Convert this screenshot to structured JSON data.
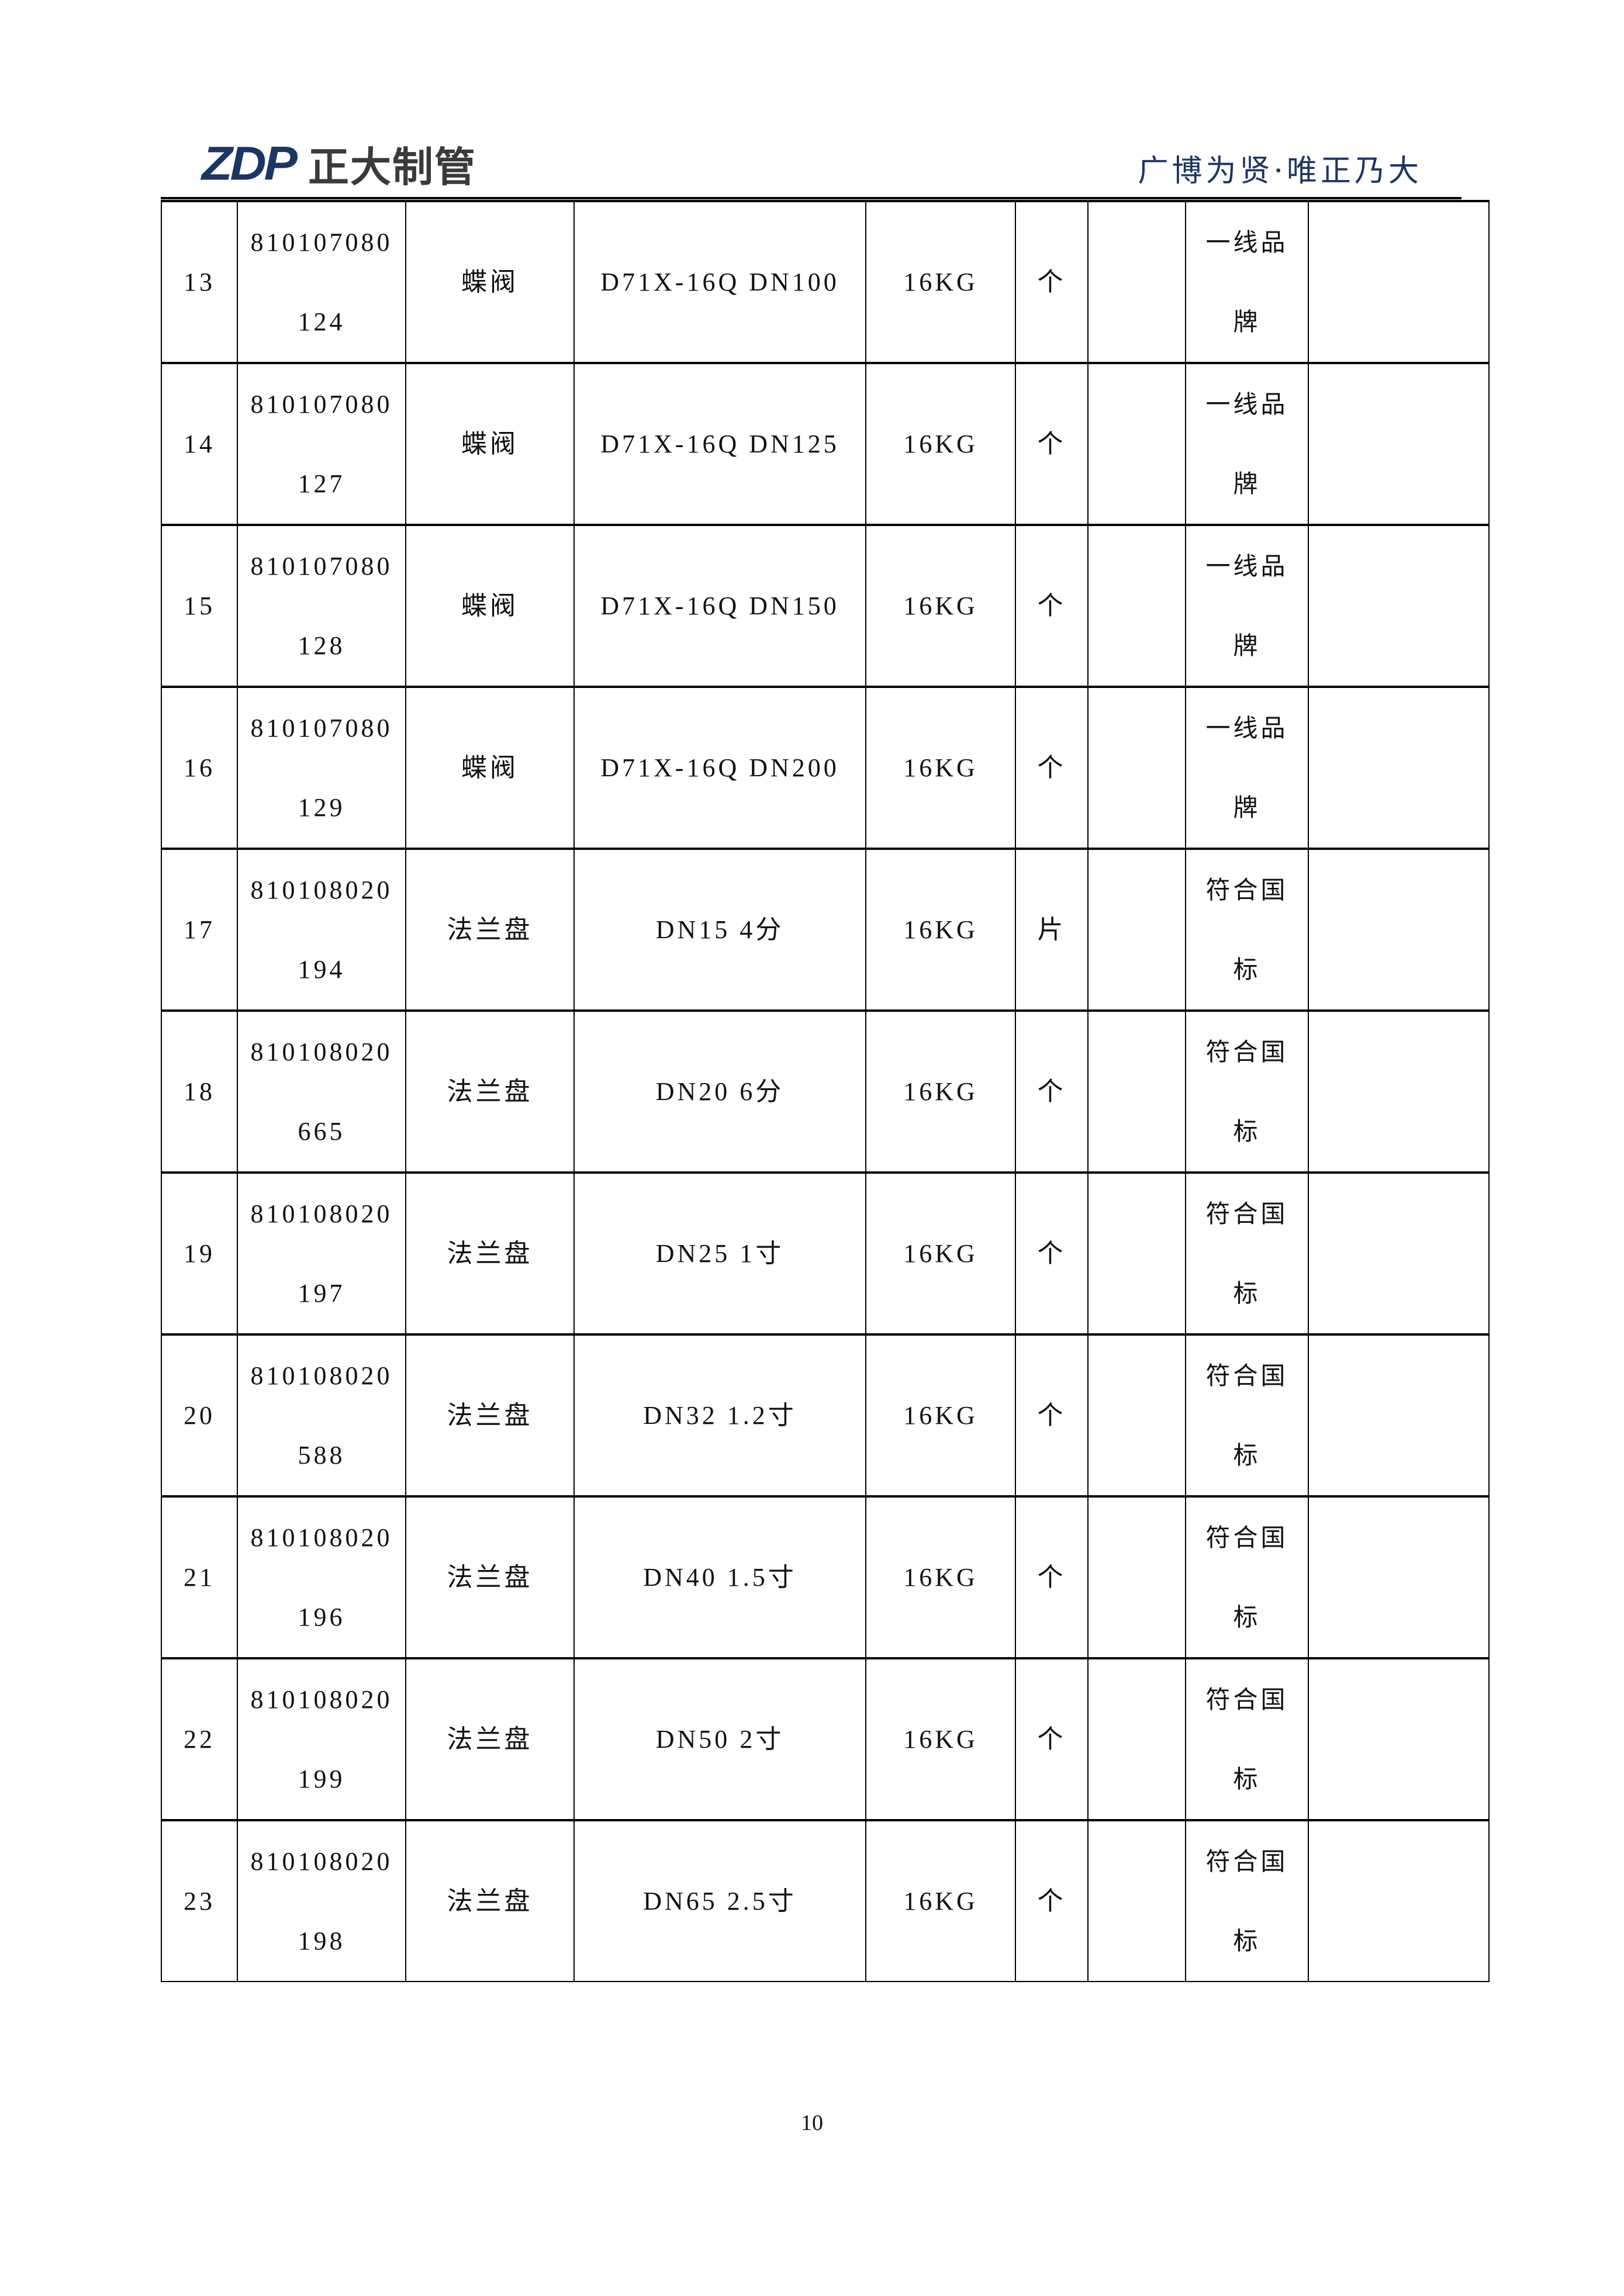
{
  "header": {
    "logo_mark": "ZDP",
    "logo_text": "正大制管",
    "slogan": "广博为贤·唯正乃大"
  },
  "rows": [
    {
      "no": "13",
      "code_a": "810107080",
      "code_b": "124",
      "name": "蝶阀",
      "spec": "D71X-16Q DN100",
      "pressure": "16KG",
      "unit": "个",
      "qty": "",
      "std_a": "一线品",
      "std_b": "牌",
      "note": ""
    },
    {
      "no": "14",
      "code_a": "810107080",
      "code_b": "127",
      "name": "蝶阀",
      "spec": "D71X-16Q DN125",
      "pressure": "16KG",
      "unit": "个",
      "qty": "",
      "std_a": "一线品",
      "std_b": "牌",
      "note": ""
    },
    {
      "no": "15",
      "code_a": "810107080",
      "code_b": "128",
      "name": "蝶阀",
      "spec": "D71X-16Q DN150",
      "pressure": "16KG",
      "unit": "个",
      "qty": "",
      "std_a": "一线品",
      "std_b": "牌",
      "note": ""
    },
    {
      "no": "16",
      "code_a": "810107080",
      "code_b": "129",
      "name": "蝶阀",
      "spec": "D71X-16Q DN200",
      "pressure": "16KG",
      "unit": "个",
      "qty": "",
      "std_a": "一线品",
      "std_b": "牌",
      "note": ""
    },
    {
      "no": "17",
      "code_a": "810108020",
      "code_b": "194",
      "name": "法兰盘",
      "spec": "DN15 4分",
      "pressure": "16KG",
      "unit": "片",
      "qty": "",
      "std_a": "符合国",
      "std_b": "标",
      "note": ""
    },
    {
      "no": "18",
      "code_a": "810108020",
      "code_b": "665",
      "name": "法兰盘",
      "spec": "DN20  6分",
      "pressure": "16KG",
      "unit": "个",
      "qty": "",
      "std_a": "符合国",
      "std_b": "标",
      "note": ""
    },
    {
      "no": "19",
      "code_a": "810108020",
      "code_b": "197",
      "name": "法兰盘",
      "spec": "DN25 1寸",
      "pressure": "16KG",
      "unit": "个",
      "qty": "",
      "std_a": "符合国",
      "std_b": "标",
      "note": ""
    },
    {
      "no": "20",
      "code_a": "810108020",
      "code_b": "588",
      "name": "法兰盘",
      "spec": "DN32 1.2寸",
      "pressure": "16KG",
      "unit": "个",
      "qty": "",
      "std_a": "符合国",
      "std_b": "标",
      "note": ""
    },
    {
      "no": "21",
      "code_a": "810108020",
      "code_b": "196",
      "name": "法兰盘",
      "spec": "DN40  1.5寸",
      "pressure": "16KG",
      "unit": "个",
      "qty": "",
      "std_a": "符合国",
      "std_b": "标",
      "note": ""
    },
    {
      "no": "22",
      "code_a": "810108020",
      "code_b": "199",
      "name": "法兰盘",
      "spec": "DN50 2寸",
      "pressure": "16KG",
      "unit": "个",
      "qty": "",
      "std_a": "符合国",
      "std_b": "标",
      "note": ""
    },
    {
      "no": "23",
      "code_a": "810108020",
      "code_b": "198",
      "name": "法兰盘",
      "spec": "DN65 2.5寸",
      "pressure": "16KG",
      "unit": "个",
      "qty": "",
      "std_a": "符合国",
      "std_b": "标",
      "note": ""
    }
  ],
  "footer": {
    "page_number": "10"
  }
}
